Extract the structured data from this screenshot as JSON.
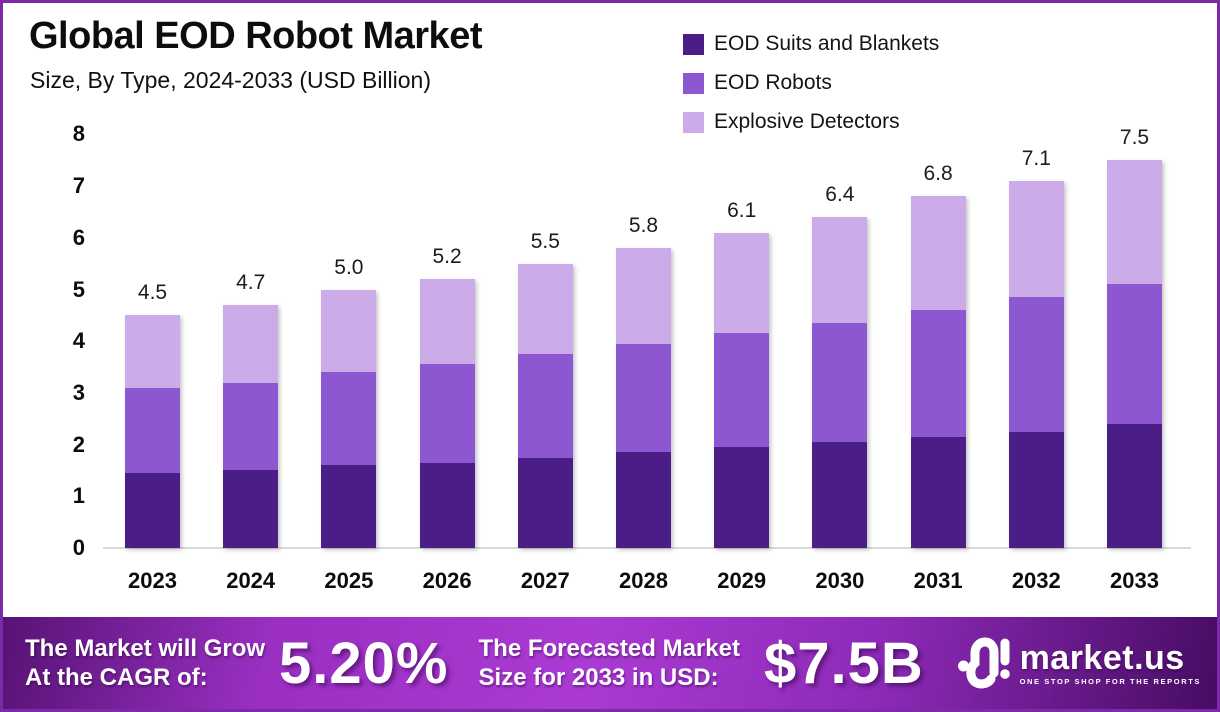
{
  "frame": {
    "border_color": "#7d2aa9",
    "background": "#ffffff"
  },
  "header": {
    "title": "Global EOD Robot Market",
    "subtitle": "Size, By Type, 2024-2033 (USD Billion)"
  },
  "chart_data": {
    "type": "bar",
    "stacked": true,
    "title": "Global EOD Robot Market Size, By Type, 2024-2033 (USD Billion)",
    "categories": [
      "2023",
      "2024",
      "2025",
      "2026",
      "2027",
      "2028",
      "2029",
      "2030",
      "2031",
      "2032",
      "2033"
    ],
    "series": [
      {
        "name": "EOD Suits and Blankets",
        "color": "#4a1d87",
        "values": [
          1.45,
          1.5,
          1.6,
          1.65,
          1.75,
          1.85,
          1.95,
          2.05,
          2.15,
          2.25,
          2.4
        ]
      },
      {
        "name": "EOD Robots",
        "color": "#8c57d1",
        "values": [
          1.65,
          1.7,
          1.8,
          1.9,
          2.0,
          2.1,
          2.2,
          2.3,
          2.45,
          2.6,
          2.7
        ]
      },
      {
        "name": "Explosive Detectors",
        "color": "#ccabe9",
        "values": [
          1.4,
          1.5,
          1.6,
          1.65,
          1.75,
          1.85,
          1.95,
          2.05,
          2.2,
          2.25,
          2.4
        ]
      }
    ],
    "totals": [
      4.5,
      4.7,
      5.0,
      5.2,
      5.5,
      5.8,
      6.1,
      6.4,
      6.8,
      7.1,
      7.5
    ],
    "total_labels": [
      "4.5",
      "4.7",
      "5.0",
      "5.2",
      "5.5",
      "5.8",
      "6.1",
      "6.4",
      "6.8",
      "7.1",
      "7.5"
    ],
    "xlabel": "",
    "ylabel": "",
    "ylim": [
      0,
      8
    ],
    "y_ticks": [
      "0",
      "1",
      "2",
      "3",
      "4",
      "5",
      "6",
      "7",
      "8"
    ],
    "grid": false,
    "legend_position": "top-right",
    "axis_line_color": "#d9d9d9"
  },
  "footer": {
    "cagr": {
      "label_line1": "The Market will Grow",
      "label_line2": "At the CAGR of:",
      "value": "5.20%"
    },
    "forecast": {
      "label_line1": "The Forecasted Market",
      "label_line2": "Size for 2033 in USD:",
      "value": "$7.5B"
    },
    "brand": {
      "name": "market.us",
      "tagline": "ONE STOP SHOP FOR THE REPORTS",
      "logo_icon": "market-us-wave-m-icon"
    },
    "gradient_colors": [
      "#571374",
      "#aa3ad3",
      "#470c63"
    ]
  }
}
